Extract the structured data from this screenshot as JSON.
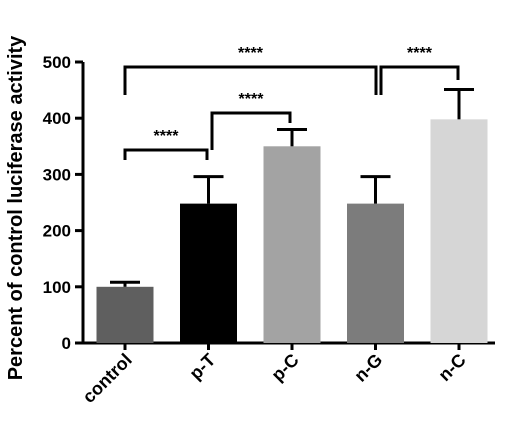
{
  "chart_data": {
    "type": "bar",
    "ylabel": "Percent of control luciferase activity",
    "ylim": [
      0,
      500
    ],
    "yticks": [
      0,
      100,
      200,
      300,
      400,
      500
    ],
    "categories": [
      "control",
      "p-T",
      "p-C",
      "n-G",
      "n-C"
    ],
    "values": [
      100,
      248,
      350,
      248,
      398
    ],
    "errors": [
      8,
      48,
      30,
      48,
      53
    ],
    "colors": [
      "#5f5f5f",
      "#000000",
      "#a3a3a3",
      "#7c7c7c",
      "#d6d6d6"
    ],
    "significance": [
      {
        "from": 0,
        "to": 1,
        "label": "****"
      },
      {
        "from": 1,
        "to": 2,
        "label": "****"
      },
      {
        "from": 0,
        "to": 3,
        "label": "****"
      },
      {
        "from": 3,
        "to": 4,
        "label": "****"
      }
    ]
  }
}
